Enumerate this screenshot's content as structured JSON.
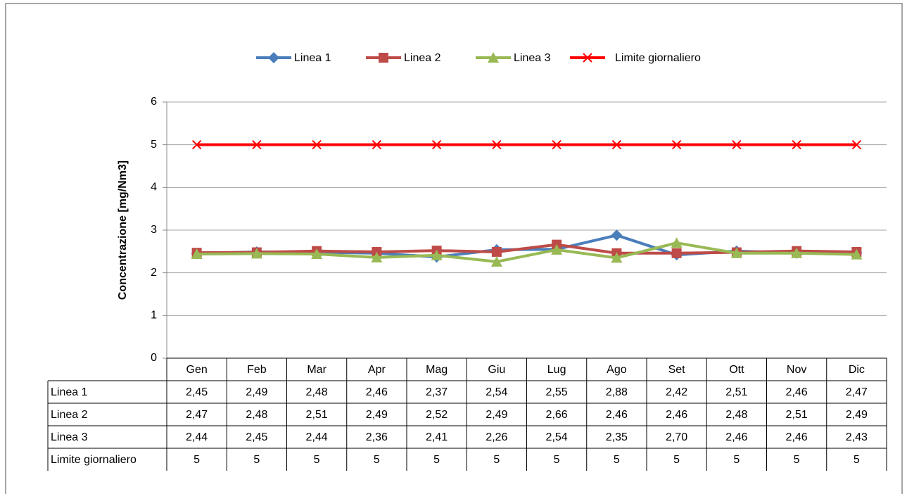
{
  "chart_data": {
    "type": "line",
    "ylabel": "Concentrazione [mg/Nm3]",
    "categories": [
      "Gen",
      "Feb",
      "Mar",
      "Apr",
      "Mag",
      "Giu",
      "Lug",
      "Ago",
      "Set",
      "Ott",
      "Nov",
      "Dic"
    ],
    "series": [
      {
        "name": "Linea 1",
        "color": "#4a7ebb",
        "marker": "diamond",
        "values": [
          2.45,
          2.49,
          2.48,
          2.46,
          2.37,
          2.54,
          2.55,
          2.88,
          2.42,
          2.51,
          2.46,
          2.47
        ],
        "value_labels": [
          "2,45",
          "2,49",
          "2,48",
          "2,46",
          "2,37",
          "2,54",
          "2,55",
          "2,88",
          "2,42",
          "2,51",
          "2,46",
          "2,47"
        ]
      },
      {
        "name": "Linea 2",
        "color": "#be4b48",
        "marker": "square",
        "values": [
          2.47,
          2.48,
          2.51,
          2.49,
          2.52,
          2.49,
          2.66,
          2.46,
          2.46,
          2.48,
          2.51,
          2.49
        ],
        "value_labels": [
          "2,47",
          "2,48",
          "2,51",
          "2,49",
          "2,52",
          "2,49",
          "2,66",
          "2,46",
          "2,46",
          "2,48",
          "2,51",
          "2,49"
        ]
      },
      {
        "name": "Linea 3",
        "color": "#98b954",
        "marker": "triangle",
        "values": [
          2.44,
          2.45,
          2.44,
          2.36,
          2.41,
          2.26,
          2.54,
          2.35,
          2.7,
          2.46,
          2.46,
          2.43
        ],
        "value_labels": [
          "2,44",
          "2,45",
          "2,44",
          "2,36",
          "2,41",
          "2,26",
          "2,54",
          "2,35",
          "2,70",
          "2,46",
          "2,46",
          "2,43"
        ]
      },
      {
        "name": "Limite giornaliero",
        "color": "#ff0000",
        "marker": "x",
        "values": [
          5,
          5,
          5,
          5,
          5,
          5,
          5,
          5,
          5,
          5,
          5,
          5
        ]
      }
    ],
    "ylim": [
      0,
      6
    ],
    "yticks": [
      0,
      1,
      2,
      3,
      4,
      5,
      6
    ],
    "grid": true,
    "legend": "top"
  }
}
